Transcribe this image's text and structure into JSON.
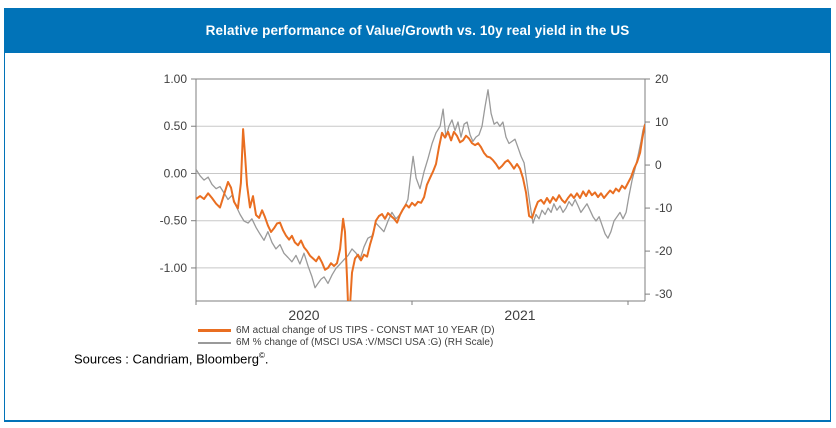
{
  "title": "Relative performance of Value/Growth vs. 10y real yield in the US",
  "sources": {
    "prefix": "Sources : Candriam, Bloomberg",
    "symbol": "©",
    "suffix": "."
  },
  "colors": {
    "header_blue": "#0173B8",
    "frame_border": "#0173B8",
    "orange_series": "#E96E21",
    "gray_series": "#9A9A9A",
    "gridline": "#C8C8C8",
    "axis_line": "#7F7F7F",
    "tick_label": "#3F3F3F",
    "legend_text": "#404040"
  },
  "chart_data": {
    "type": "line",
    "title": "Relative performance of Value/Growth vs. 10y real yield in the US",
    "grid": "horizontal",
    "legend_position": "bottom-left",
    "x_axis": {
      "unit": "years since Jan 2020",
      "tick_years": [
        2020,
        2021,
        2022
      ],
      "year_labels": [
        "2020",
        "2021"
      ],
      "t_min": 0,
      "t_max": 2.079
    },
    "left_axis": {
      "min": -1.35,
      "max": 1.0,
      "tick_values": [
        1.0,
        0.5,
        0.0,
        -0.5,
        -1.0
      ],
      "tick_labels": [
        "1.00",
        "0.50",
        "0.00",
        "-0.50",
        "-1.00"
      ]
    },
    "right_axis": {
      "min": -31.6,
      "max": 20,
      "tick_values": [
        20,
        10,
        0,
        -10,
        -20,
        -30
      ],
      "tick_labels": [
        "20",
        "10",
        "0",
        "-10",
        "-20",
        "-30"
      ]
    },
    "series": [
      {
        "name": "6M actual change of US TIPS - CONST MAT 10 YEAR (D)",
        "axis": "left",
        "color": "#E96E21",
        "width": 2,
        "points": [
          [
            0.0,
            -0.27
          ],
          [
            0.019,
            -0.24
          ],
          [
            0.037,
            -0.27
          ],
          [
            0.056,
            -0.21
          ],
          [
            0.074,
            -0.26
          ],
          [
            0.093,
            -0.32
          ],
          [
            0.111,
            -0.36
          ],
          [
            0.13,
            -0.22
          ],
          [
            0.148,
            -0.09
          ],
          [
            0.162,
            -0.15
          ],
          [
            0.176,
            -0.3
          ],
          [
            0.194,
            -0.37
          ],
          [
            0.208,
            -0.1
          ],
          [
            0.218,
            0.47
          ],
          [
            0.227,
            0.2
          ],
          [
            0.236,
            -0.12
          ],
          [
            0.25,
            -0.36
          ],
          [
            0.264,
            -0.24
          ],
          [
            0.278,
            -0.44
          ],
          [
            0.292,
            -0.47
          ],
          [
            0.306,
            -0.39
          ],
          [
            0.319,
            -0.46
          ],
          [
            0.333,
            -0.55
          ],
          [
            0.347,
            -0.62
          ],
          [
            0.361,
            -0.58
          ],
          [
            0.375,
            -0.53
          ],
          [
            0.389,
            -0.52
          ],
          [
            0.403,
            -0.6
          ],
          [
            0.417,
            -0.66
          ],
          [
            0.431,
            -0.7
          ],
          [
            0.444,
            -0.66
          ],
          [
            0.458,
            -0.73
          ],
          [
            0.472,
            -0.76
          ],
          [
            0.486,
            -0.71
          ],
          [
            0.5,
            -0.78
          ],
          [
            0.514,
            -0.82
          ],
          [
            0.528,
            -0.87
          ],
          [
            0.542,
            -0.9
          ],
          [
            0.556,
            -0.93
          ],
          [
            0.569,
            -0.88
          ],
          [
            0.583,
            -0.94
          ],
          [
            0.597,
            -1.02
          ],
          [
            0.611,
            -1.0
          ],
          [
            0.625,
            -0.95
          ],
          [
            0.639,
            -0.98
          ],
          [
            0.653,
            -0.95
          ],
          [
            0.667,
            -0.8
          ],
          [
            0.681,
            -0.48
          ],
          [
            0.69,
            -0.62
          ],
          [
            0.699,
            -1.1
          ],
          [
            0.704,
            -1.4
          ],
          [
            0.713,
            -1.4
          ],
          [
            0.722,
            -1.05
          ],
          [
            0.736,
            -0.9
          ],
          [
            0.75,
            -0.86
          ],
          [
            0.764,
            -0.92
          ],
          [
            0.778,
            -0.86
          ],
          [
            0.792,
            -0.88
          ],
          [
            0.806,
            -0.75
          ],
          [
            0.819,
            -0.65
          ],
          [
            0.833,
            -0.5
          ],
          [
            0.847,
            -0.45
          ],
          [
            0.861,
            -0.43
          ],
          [
            0.875,
            -0.48
          ],
          [
            0.889,
            -0.42
          ],
          [
            0.903,
            -0.45
          ],
          [
            0.917,
            -0.48
          ],
          [
            0.931,
            -0.52
          ],
          [
            0.944,
            -0.44
          ],
          [
            0.958,
            -0.38
          ],
          [
            0.972,
            -0.33
          ],
          [
            0.986,
            -0.36
          ],
          [
            1.0,
            -0.31
          ],
          [
            1.014,
            -0.34
          ],
          [
            1.028,
            -0.3
          ],
          [
            1.042,
            -0.31
          ],
          [
            1.056,
            -0.25
          ],
          [
            1.069,
            -0.12
          ],
          [
            1.083,
            -0.05
          ],
          [
            1.097,
            0.02
          ],
          [
            1.111,
            0.1
          ],
          [
            1.125,
            0.28
          ],
          [
            1.139,
            0.43
          ],
          [
            1.153,
            0.38
          ],
          [
            1.167,
            0.44
          ],
          [
            1.181,
            0.35
          ],
          [
            1.194,
            0.44
          ],
          [
            1.208,
            0.4
          ],
          [
            1.222,
            0.33
          ],
          [
            1.236,
            0.35
          ],
          [
            1.25,
            0.4
          ],
          [
            1.264,
            0.37
          ],
          [
            1.278,
            0.32
          ],
          [
            1.292,
            0.3
          ],
          [
            1.306,
            0.32
          ],
          [
            1.319,
            0.28
          ],
          [
            1.333,
            0.22
          ],
          [
            1.347,
            0.18
          ],
          [
            1.361,
            0.17
          ],
          [
            1.375,
            0.14
          ],
          [
            1.389,
            0.1
          ],
          [
            1.403,
            0.05
          ],
          [
            1.417,
            0.08
          ],
          [
            1.431,
            0.12
          ],
          [
            1.444,
            0.14
          ],
          [
            1.458,
            0.1
          ],
          [
            1.472,
            0.05
          ],
          [
            1.486,
            0.1
          ],
          [
            1.5,
            0.05
          ],
          [
            1.514,
            -0.05
          ],
          [
            1.528,
            -0.2
          ],
          [
            1.542,
            -0.45
          ],
          [
            1.556,
            -0.47
          ],
          [
            1.569,
            -0.38
          ],
          [
            1.583,
            -0.3
          ],
          [
            1.597,
            -0.28
          ],
          [
            1.611,
            -0.32
          ],
          [
            1.625,
            -0.26
          ],
          [
            1.639,
            -0.31
          ],
          [
            1.653,
            -0.25
          ],
          [
            1.667,
            -0.29
          ],
          [
            1.681,
            -0.23
          ],
          [
            1.694,
            -0.28
          ],
          [
            1.708,
            -0.31
          ],
          [
            1.722,
            -0.26
          ],
          [
            1.736,
            -0.22
          ],
          [
            1.75,
            -0.26
          ],
          [
            1.764,
            -0.21
          ],
          [
            1.778,
            -0.26
          ],
          [
            1.792,
            -0.19
          ],
          [
            1.806,
            -0.24
          ],
          [
            1.819,
            -0.18
          ],
          [
            1.833,
            -0.23
          ],
          [
            1.847,
            -0.2
          ],
          [
            1.861,
            -0.25
          ],
          [
            1.875,
            -0.21
          ],
          [
            1.889,
            -0.26
          ],
          [
            1.903,
            -0.22
          ],
          [
            1.917,
            -0.18
          ],
          [
            1.931,
            -0.21
          ],
          [
            1.944,
            -0.16
          ],
          [
            1.958,
            -0.19
          ],
          [
            1.972,
            -0.13
          ],
          [
            1.986,
            -0.16
          ],
          [
            2.0,
            -0.1
          ],
          [
            2.014,
            -0.04
          ],
          [
            2.028,
            0.05
          ],
          [
            2.042,
            0.12
          ],
          [
            2.056,
            0.22
          ],
          [
            2.065,
            0.35
          ],
          [
            2.074,
            0.47
          ],
          [
            2.079,
            0.52
          ]
        ]
      },
      {
        "name": "6M % change of (MSCI USA :V/MSCI USA :G) (RH Scale)",
        "axis": "right",
        "color": "#9A9A9A",
        "width": 1.3,
        "points": [
          [
            0.0,
            -1.0
          ],
          [
            0.019,
            -2.5
          ],
          [
            0.037,
            -3.5
          ],
          [
            0.056,
            -2.8
          ],
          [
            0.074,
            -4.5
          ],
          [
            0.093,
            -5.5
          ],
          [
            0.111,
            -5.0
          ],
          [
            0.13,
            -6.5
          ],
          [
            0.148,
            -8.0
          ],
          [
            0.167,
            -7.0
          ],
          [
            0.185,
            -9.5
          ],
          [
            0.204,
            -11.5
          ],
          [
            0.222,
            -13.0
          ],
          [
            0.241,
            -13.5
          ],
          [
            0.259,
            -12.5
          ],
          [
            0.278,
            -14.5
          ],
          [
            0.296,
            -16.0
          ],
          [
            0.315,
            -17.5
          ],
          [
            0.333,
            -15.5
          ],
          [
            0.352,
            -18.0
          ],
          [
            0.37,
            -19.5
          ],
          [
            0.389,
            -18.5
          ],
          [
            0.407,
            -20.5
          ],
          [
            0.426,
            -21.5
          ],
          [
            0.444,
            -22.5
          ],
          [
            0.463,
            -21.0
          ],
          [
            0.481,
            -23.0
          ],
          [
            0.5,
            -20.5
          ],
          [
            0.519,
            -23.5
          ],
          [
            0.537,
            -26.0
          ],
          [
            0.551,
            -28.5
          ],
          [
            0.565,
            -27.5
          ],
          [
            0.579,
            -26.5
          ],
          [
            0.593,
            -26.0
          ],
          [
            0.611,
            -27.5
          ],
          [
            0.63,
            -25.5
          ],
          [
            0.648,
            -24.0
          ],
          [
            0.667,
            -23.0
          ],
          [
            0.685,
            -22.0
          ],
          [
            0.704,
            -21.0
          ],
          [
            0.722,
            -19.5
          ],
          [
            0.741,
            -20.5
          ],
          [
            0.759,
            -22.0
          ],
          [
            0.778,
            -19.0
          ],
          [
            0.796,
            -17.0
          ],
          [
            0.815,
            -16.5
          ],
          [
            0.833,
            -13.5
          ],
          [
            0.852,
            -14.5
          ],
          [
            0.87,
            -15.5
          ],
          [
            0.889,
            -13.0
          ],
          [
            0.907,
            -11.0
          ],
          [
            0.926,
            -12.5
          ],
          [
            0.944,
            -11.5
          ],
          [
            0.963,
            -10.0
          ],
          [
            0.981,
            -8.0
          ],
          [
            0.995,
            -2.0
          ],
          [
            1.005,
            2.0
          ],
          [
            1.019,
            -3.0
          ],
          [
            1.037,
            -5.5
          ],
          [
            1.056,
            -1.5
          ],
          [
            1.074,
            1.5
          ],
          [
            1.093,
            5.0
          ],
          [
            1.111,
            7.5
          ],
          [
            1.13,
            9.0
          ],
          [
            1.144,
            13.0
          ],
          [
            1.157,
            6.5
          ],
          [
            1.171,
            9.0
          ],
          [
            1.185,
            10.5
          ],
          [
            1.199,
            8.0
          ],
          [
            1.213,
            10.0
          ],
          [
            1.227,
            6.5
          ],
          [
            1.241,
            9.5
          ],
          [
            1.255,
            10.0
          ],
          [
            1.269,
            7.0
          ],
          [
            1.282,
            5.5
          ],
          [
            1.296,
            6.5
          ],
          [
            1.31,
            7.0
          ],
          [
            1.324,
            9.0
          ],
          [
            1.338,
            13.5
          ],
          [
            1.352,
            17.5
          ],
          [
            1.366,
            12.0
          ],
          [
            1.38,
            9.5
          ],
          [
            1.394,
            10.0
          ],
          [
            1.407,
            9.0
          ],
          [
            1.421,
            10.0
          ],
          [
            1.435,
            6.5
          ],
          [
            1.449,
            5.0
          ],
          [
            1.463,
            5.5
          ],
          [
            1.477,
            6.0
          ],
          [
            1.491,
            4.0
          ],
          [
            1.505,
            2.0
          ],
          [
            1.519,
            0.5
          ],
          [
            1.532,
            -4.0
          ],
          [
            1.546,
            -9.0
          ],
          [
            1.56,
            -13.5
          ],
          [
            1.574,
            -11.5
          ],
          [
            1.588,
            -12.5
          ],
          [
            1.602,
            -10.5
          ],
          [
            1.616,
            -11.5
          ],
          [
            1.63,
            -10.0
          ],
          [
            1.644,
            -11.0
          ],
          [
            1.657,
            -9.0
          ],
          [
            1.671,
            -10.5
          ],
          [
            1.685,
            -9.5
          ],
          [
            1.699,
            -11.0
          ],
          [
            1.713,
            -10.0
          ],
          [
            1.727,
            -8.5
          ],
          [
            1.741,
            -9.5
          ],
          [
            1.755,
            -8.0
          ],
          [
            1.769,
            -9.5
          ],
          [
            1.782,
            -11.0
          ],
          [
            1.796,
            -10.0
          ],
          [
            1.81,
            -9.0
          ],
          [
            1.824,
            -10.5
          ],
          [
            1.838,
            -12.0
          ],
          [
            1.852,
            -13.0
          ],
          [
            1.866,
            -12.0
          ],
          [
            1.88,
            -14.0
          ],
          [
            1.894,
            -16.0
          ],
          [
            1.907,
            -17.0
          ],
          [
            1.921,
            -15.5
          ],
          [
            1.935,
            -13.0
          ],
          [
            1.949,
            -12.0
          ],
          [
            1.963,
            -11.0
          ],
          [
            1.977,
            -12.5
          ],
          [
            1.991,
            -11.0
          ],
          [
            2.005,
            -7.0
          ],
          [
            2.019,
            -3.5
          ],
          [
            2.032,
            -1.0
          ],
          [
            2.046,
            2.0
          ],
          [
            2.06,
            5.5
          ],
          [
            2.069,
            8.0
          ],
          [
            2.079,
            9.8
          ]
        ]
      }
    ]
  }
}
